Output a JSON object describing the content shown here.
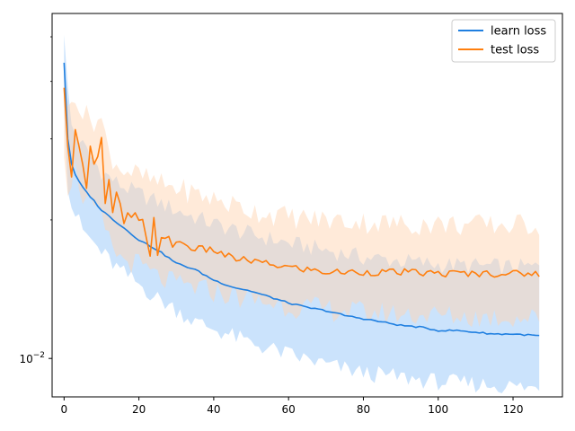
{
  "chart_data": {
    "type": "line",
    "title": "",
    "xlabel": "",
    "ylabel": "",
    "xlim": [
      -3.2,
      133.2
    ],
    "ylim": [
      0.00825,
      0.0562
    ],
    "yscale": "log",
    "xticks": [
      0,
      20,
      40,
      60,
      80,
      100,
      120
    ],
    "xtick_labels": [
      "0",
      "20",
      "40",
      "60",
      "80",
      "100",
      "120"
    ],
    "ytick_major": [
      0.01
    ],
    "ytick_major_labels": [
      "10^{-2}"
    ],
    "ytick_major_base": "10",
    "ytick_major_exponent": "−2",
    "ytick_minor": [
      0.02,
      0.03,
      0.04,
      0.05
    ],
    "grid": false,
    "legend": {
      "position": "top-right",
      "entries": [
        "learn loss",
        "test loss"
      ]
    },
    "series": [
      {
        "name": "learn loss",
        "color": "#1f7fe0",
        "band_color": "#a8d0fa",
        "mean_anchors": [
          [
            0,
            0.044
          ],
          [
            1,
            0.03
          ],
          [
            2,
            0.0265
          ],
          [
            3,
            0.025
          ],
          [
            5,
            0.0235
          ],
          [
            8,
            0.022
          ],
          [
            10,
            0.021
          ],
          [
            15,
            0.0195
          ],
          [
            20,
            0.0181
          ],
          [
            25,
            0.0172
          ],
          [
            30,
            0.0161
          ],
          [
            35,
            0.0156
          ],
          [
            40,
            0.0148
          ],
          [
            45,
            0.0143
          ],
          [
            50,
            0.014
          ],
          [
            55,
            0.0136
          ],
          [
            60,
            0.0132
          ],
          [
            65,
            0.0129
          ],
          [
            70,
            0.0127
          ],
          [
            75,
            0.0124
          ],
          [
            80,
            0.0122
          ],
          [
            85,
            0.012
          ],
          [
            90,
            0.0118
          ],
          [
            95,
            0.0117
          ],
          [
            100,
            0.0115
          ],
          [
            105,
            0.0115
          ],
          [
            110,
            0.0114
          ],
          [
            115,
            0.0113
          ],
          [
            120,
            0.0113
          ],
          [
            127,
            0.0112
          ]
        ],
        "upper_anchors": [
          [
            0,
            0.052
          ],
          [
            1,
            0.038
          ],
          [
            2,
            0.032
          ],
          [
            5,
            0.029
          ],
          [
            10,
            0.0255
          ],
          [
            15,
            0.0238
          ],
          [
            20,
            0.0228
          ],
          [
            30,
            0.021
          ],
          [
            40,
            0.0196
          ],
          [
            50,
            0.0186
          ],
          [
            60,
            0.0178
          ],
          [
            70,
            0.0172
          ],
          [
            80,
            0.0166
          ],
          [
            90,
            0.0163
          ],
          [
            100,
            0.016
          ],
          [
            110,
            0.0159
          ],
          [
            120,
            0.0158
          ],
          [
            127,
            0.0158
          ]
        ],
        "lower_anchors": [
          [
            0,
            0.037
          ],
          [
            1,
            0.024
          ],
          [
            2,
            0.0215
          ],
          [
            5,
            0.019
          ],
          [
            10,
            0.017
          ],
          [
            15,
            0.0155
          ],
          [
            20,
            0.0145
          ],
          [
            25,
            0.0135
          ],
          [
            30,
            0.0128
          ],
          [
            35,
            0.012
          ],
          [
            40,
            0.0116
          ],
          [
            50,
            0.0108
          ],
          [
            60,
            0.0102
          ],
          [
            70,
            0.0097
          ],
          [
            80,
            0.0093
          ],
          [
            90,
            0.0091
          ],
          [
            100,
            0.0089
          ],
          [
            110,
            0.0088
          ],
          [
            120,
            0.0087
          ],
          [
            127,
            0.0086
          ]
        ]
      },
      {
        "name": "test loss",
        "color": "#ff7f0e",
        "band_color": "#ffd6b3",
        "mean_anchors": [
          [
            0,
            0.037
          ],
          [
            1,
            0.028
          ],
          [
            2,
            0.026
          ],
          [
            3,
            0.033
          ],
          [
            4,
            0.028
          ],
          [
            5,
            0.0275
          ],
          [
            6,
            0.024
          ],
          [
            7,
            0.03
          ],
          [
            8,
            0.026
          ],
          [
            10,
            0.0295
          ],
          [
            11,
            0.021
          ],
          [
            12,
            0.024
          ],
          [
            13,
            0.02
          ],
          [
            14,
            0.023
          ],
          [
            15,
            0.021
          ],
          [
            16,
            0.02
          ],
          [
            20,
            0.0198
          ],
          [
            22,
            0.0188
          ],
          [
            23,
            0.0172
          ],
          [
            24,
            0.02
          ],
          [
            25,
            0.0175
          ],
          [
            30,
            0.018
          ],
          [
            35,
            0.0173
          ],
          [
            40,
            0.0172
          ],
          [
            45,
            0.0165
          ],
          [
            50,
            0.0163
          ],
          [
            55,
            0.016
          ],
          [
            60,
            0.0158
          ],
          [
            65,
            0.0156
          ],
          [
            70,
            0.0154
          ],
          [
            80,
            0.0154
          ],
          [
            90,
            0.0154
          ],
          [
            100,
            0.0153
          ],
          [
            110,
            0.0153
          ],
          [
            120,
            0.0153
          ],
          [
            127,
            0.0153
          ]
        ],
        "upper_anchors": [
          [
            0,
            0.044
          ],
          [
            1,
            0.034
          ],
          [
            3,
            0.038
          ],
          [
            5,
            0.034
          ],
          [
            8,
            0.033
          ],
          [
            10,
            0.033
          ],
          [
            12,
            0.028
          ],
          [
            15,
            0.026
          ],
          [
            20,
            0.025
          ],
          [
            25,
            0.024
          ],
          [
            30,
            0.0235
          ],
          [
            40,
            0.0222
          ],
          [
            50,
            0.021
          ],
          [
            60,
            0.0203
          ],
          [
            70,
            0.02
          ],
          [
            80,
            0.0198
          ],
          [
            90,
            0.0196
          ],
          [
            100,
            0.0196
          ],
          [
            110,
            0.0195
          ],
          [
            120,
            0.0195
          ],
          [
            127,
            0.0196
          ]
        ],
        "lower_anchors": [
          [
            0,
            0.029
          ],
          [
            1,
            0.0235
          ],
          [
            3,
            0.026
          ],
          [
            5,
            0.0225
          ],
          [
            8,
            0.021
          ],
          [
            10,
            0.02
          ],
          [
            12,
            0.018
          ],
          [
            15,
            0.0165
          ],
          [
            20,
            0.016
          ],
          [
            25,
            0.015
          ],
          [
            30,
            0.0145
          ],
          [
            40,
            0.014
          ],
          [
            50,
            0.0134
          ],
          [
            60,
            0.013
          ],
          [
            70,
            0.0128
          ],
          [
            80,
            0.0126
          ],
          [
            90,
            0.0125
          ],
          [
            100,
            0.0124
          ],
          [
            110,
            0.0123
          ],
          [
            120,
            0.0123
          ],
          [
            127,
            0.0122
          ]
        ]
      }
    ]
  }
}
